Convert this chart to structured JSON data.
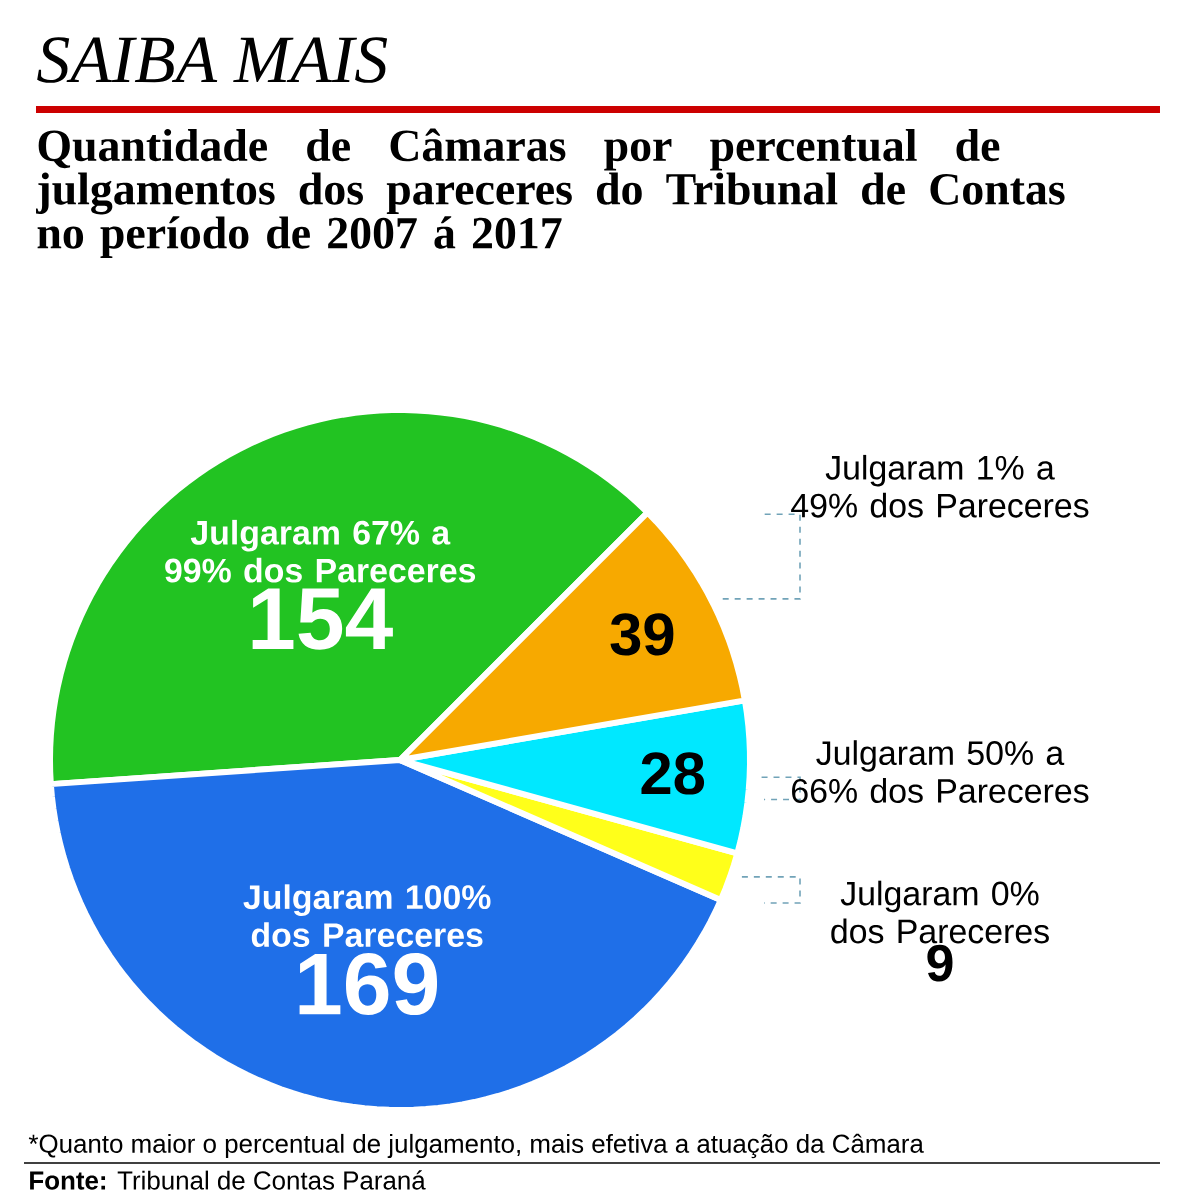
{
  "chart_data": {
    "type": "pie",
    "title": "SAIBA MAIS",
    "subtitle": "Quantidade de Câmaras por percentual de julgamentos dos pareceres do Tribunal de Contas no período de 2007 á 2017",
    "categories": [
      "Julgaram 67% a 99% dos Pareceres",
      "Julgaram 100% dos Pareceres",
      "Julgaram 0% dos Pareceres",
      "Julgaram 50% a 66% dos Pareceres",
      "Julgaram 1% a 49% dos Pareceres"
    ],
    "values": [
      154,
      169,
      9,
      28,
      39
    ],
    "colors": [
      "#22c322",
      "#1f6fe8",
      "#ffff1a",
      "#00e8ff",
      "#f7a900"
    ],
    "data_labels": true,
    "annotations": [
      "*Quanto maior o percentual de julgamento, mais efetiva a atuação da Câmara",
      "**Fonte:** Tribunal de Contas Paraná"
    ]
  }
}
